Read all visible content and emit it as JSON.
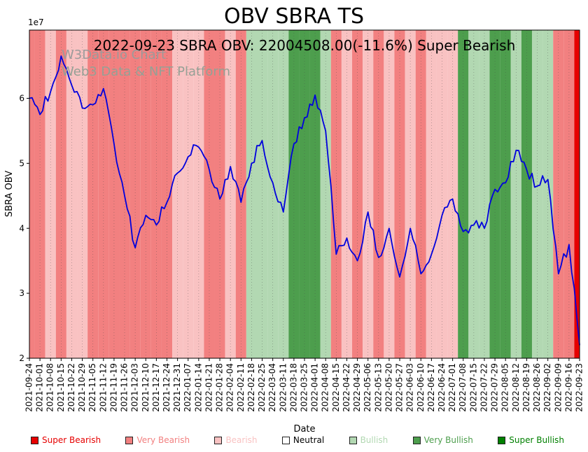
{
  "title": "OBV SBRA TS",
  "subtitle": "2022-09-23 SBRA OBV: 22004508.00(-11.6%) Super Bearish",
  "watermark": {
    "line1": "W3Data.io Chart",
    "line2": "Web3 Data & NFT Platform"
  },
  "axes": {
    "ylabel": "SBRA OBV",
    "xlabel": "Date",
    "y_offset_text": "1e7"
  },
  "chart_data": {
    "type": "line",
    "title": "OBV SBRA TS",
    "xlabel": "Date",
    "ylabel": "SBRA OBV",
    "y_offset_text": "1e7",
    "ylim": [
      20000000,
      70500000
    ],
    "yticks": [
      20000000,
      30000000,
      40000000,
      50000000,
      60000000
    ],
    "ytick_labels": [
      "2",
      "3",
      "4",
      "5",
      "6"
    ],
    "grid": "vertical-dotted",
    "legend_position": "bottom",
    "latest": {
      "date": "2022-09-23",
      "obv": 22004508.0,
      "change_pct": -11.6,
      "sentiment": "Super Bearish"
    },
    "x": [
      "2021-09-24",
      "2021-10-01",
      "2021-10-08",
      "2021-10-15",
      "2021-10-22",
      "2021-10-29",
      "2021-11-05",
      "2021-11-12",
      "2021-11-19",
      "2021-11-26",
      "2021-12-03",
      "2021-12-10",
      "2021-12-17",
      "2021-12-24",
      "2021-12-31",
      "2022-01-07",
      "2022-01-14",
      "2022-01-21",
      "2022-01-28",
      "2022-02-04",
      "2022-02-11",
      "2022-02-18",
      "2022-02-25",
      "2022-03-04",
      "2022-03-11",
      "2022-03-18",
      "2022-03-25",
      "2022-04-01",
      "2022-04-08",
      "2022-04-15",
      "2022-04-22",
      "2022-04-29",
      "2022-05-06",
      "2022-05-13",
      "2022-05-20",
      "2022-05-27",
      "2022-06-03",
      "2022-06-10",
      "2022-06-17",
      "2022-06-24",
      "2022-07-01",
      "2022-07-08",
      "2022-07-15",
      "2022-07-22",
      "2022-07-29",
      "2022-08-05",
      "2022-08-12",
      "2022-08-19",
      "2022-08-26",
      "2022-09-02",
      "2022-09-09",
      "2022-09-16",
      "2022-09-23"
    ],
    "series": [
      {
        "name": "SBRA OBV",
        "color": "#0000dd",
        "values": [
          60000000,
          57500000,
          61000000,
          66500000,
          62000000,
          58500000,
          59000000,
          61500000,
          53000000,
          45000000,
          37000000,
          42000000,
          40500000,
          44000000,
          48500000,
          51000000,
          52500000,
          49000000,
          44500000,
          49500000,
          44000000,
          50000000,
          53500000,
          47000000,
          42500000,
          53000000,
          57000000,
          60500000,
          55000000,
          36000000,
          38500000,
          35000000,
          42500000,
          35500000,
          40000000,
          32500000,
          40000000,
          33000000,
          36000000,
          42000000,
          44500000,
          39500000,
          40500000,
          40000000,
          46000000,
          47000000,
          52000000,
          49000000,
          46500000,
          47500000,
          33000000,
          37500000,
          22004508
        ]
      }
    ],
    "sentiment_bands": [
      "Very Bearish",
      "Very Bearish",
      "Bearish",
      "Very Bearish",
      "Bearish",
      "Bearish",
      "Very Bearish",
      "Very Bearish",
      "Very Bearish",
      "Very Bearish",
      "Very Bearish",
      "Very Bearish",
      "Very Bearish",
      "Very Bearish",
      "Bearish",
      "Bearish",
      "Bearish",
      "Very Bearish",
      "Very Bearish",
      "Bearish",
      "Very Bearish",
      "Bullish",
      "Bullish",
      "Bullish",
      "Bullish",
      "Very Bullish",
      "Very Bullish",
      "Very Bullish",
      "Bullish",
      "Very Bearish",
      "Bearish",
      "Very Bearish",
      "Bearish",
      "Very Bearish",
      "Bearish",
      "Very Bearish",
      "Bearish",
      "Very Bearish",
      "Bearish",
      "Bearish",
      "Bearish",
      "Very Bullish",
      "Bullish",
      "Bullish",
      "Very Bullish",
      "Very Bullish",
      "Bullish",
      "Very Bullish",
      "Bullish",
      "Bullish",
      "Very Bearish",
      "Very Bearish",
      "Super Bearish"
    ],
    "sentiment_colors": {
      "Super Bearish": "#e60000",
      "Very Bearish": "#f28080",
      "Bearish": "#f9c2c2",
      "Neutral": "#ffffff",
      "Bullish": "#b2d8b2",
      "Very Bullish": "#4d9e4d",
      "Super Bullish": "#008000"
    }
  },
  "legend": {
    "items": [
      {
        "label": "Super Bearish",
        "color": "#e60000"
      },
      {
        "label": "Very Bearish",
        "color": "#f28080"
      },
      {
        "label": "Bearish",
        "color": "#f9c2c2"
      },
      {
        "label": "Neutral",
        "color": "#ffffff",
        "text_color": "#000000"
      },
      {
        "label": "Bullish",
        "color": "#b2d8b2"
      },
      {
        "label": "Very Bullish",
        "color": "#4d9e4d"
      },
      {
        "label": "Super Bullish",
        "color": "#008000"
      }
    ]
  }
}
